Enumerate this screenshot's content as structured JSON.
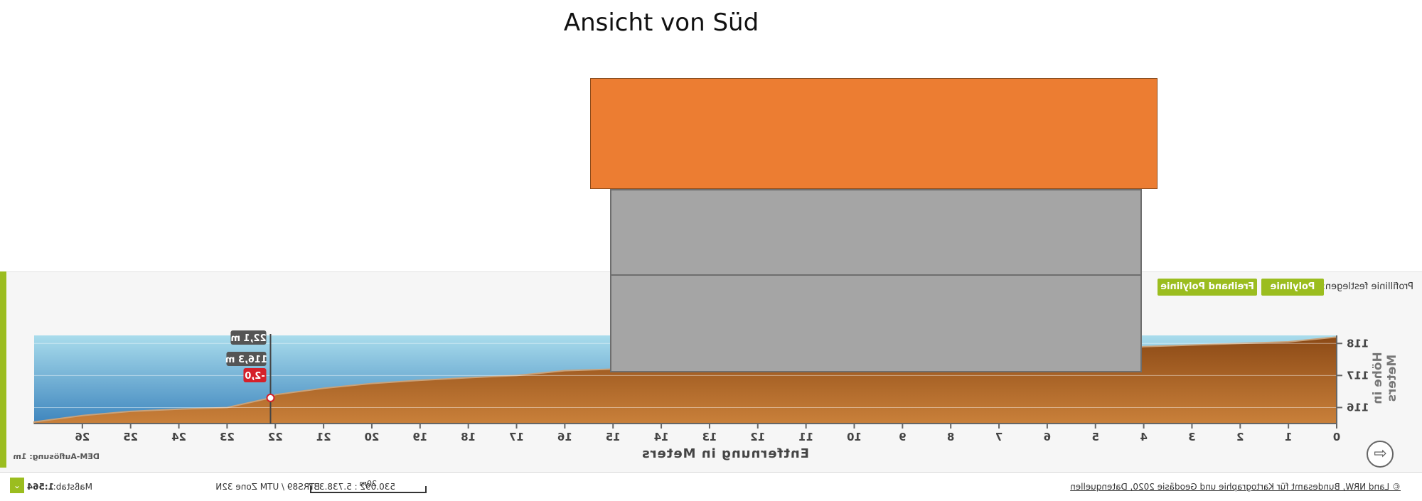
{
  "title": "Ansicht von Süd",
  "panel": {
    "profile_label": "Profillinie festlegen:",
    "btn_polyline": "Polylinie",
    "btn_freehand": "Freihand Polylinie",
    "dem_resolution": "DEM-Auflösung: 1m"
  },
  "footer": {
    "credit": "© Land NRW, Bundesamt für Kartographie und Geodäsie 2020, Datenquellen",
    "scale_label": "Maßstab:",
    "scale_value": "1:564",
    "scale_selector": "⌄",
    "crs": "ETRS89 / UTM Zone 32N",
    "coords": "530.092 : 5.738.337",
    "scalebar_label": "20m"
  },
  "colors": {
    "roof": "#ec7d32",
    "walls": "#a5a5a5",
    "terrain": "#b86a2a",
    "sky": "#7fbfe0",
    "accent": "#9bbd1f",
    "callout": "#555555",
    "callout_alert": "#d5202a"
  },
  "chart_data": {
    "type": "area",
    "title": "",
    "xlabel": "Entfernung in Meters",
    "ylabel": "Höhe in Meters",
    "x_reversed": true,
    "mirrored": true,
    "xlim": [
      0,
      27
    ],
    "ylim": [
      115.5,
      118.25
    ],
    "x_ticks": [
      0,
      1,
      2,
      3,
      4,
      5,
      6,
      7,
      8,
      9,
      10,
      11,
      12,
      13,
      14,
      15,
      16,
      17,
      18,
      19,
      20,
      21,
      22,
      23,
      24,
      25,
      26
    ],
    "y_ticks": [
      116,
      117,
      118
    ],
    "x": [
      0,
      1,
      2,
      3,
      4,
      5,
      6,
      7,
      8,
      9,
      10,
      11,
      12,
      13,
      14,
      15,
      16,
      17,
      18,
      19,
      20,
      21,
      22,
      22.1,
      23,
      24,
      25,
      26,
      27
    ],
    "y": [
      118.2,
      118.05,
      118.0,
      117.95,
      117.9,
      117.75,
      117.7,
      117.6,
      117.55,
      117.5,
      117.45,
      117.4,
      117.38,
      117.33,
      117.25,
      117.2,
      117.15,
      117.0,
      116.93,
      116.85,
      116.75,
      116.6,
      116.4,
      116.3,
      116.0,
      115.95,
      115.88,
      115.75,
      115.55
    ],
    "marker": {
      "x": 22.1,
      "distance": "22,1 m",
      "height": "116,3 m",
      "delta": "-2,0"
    }
  }
}
